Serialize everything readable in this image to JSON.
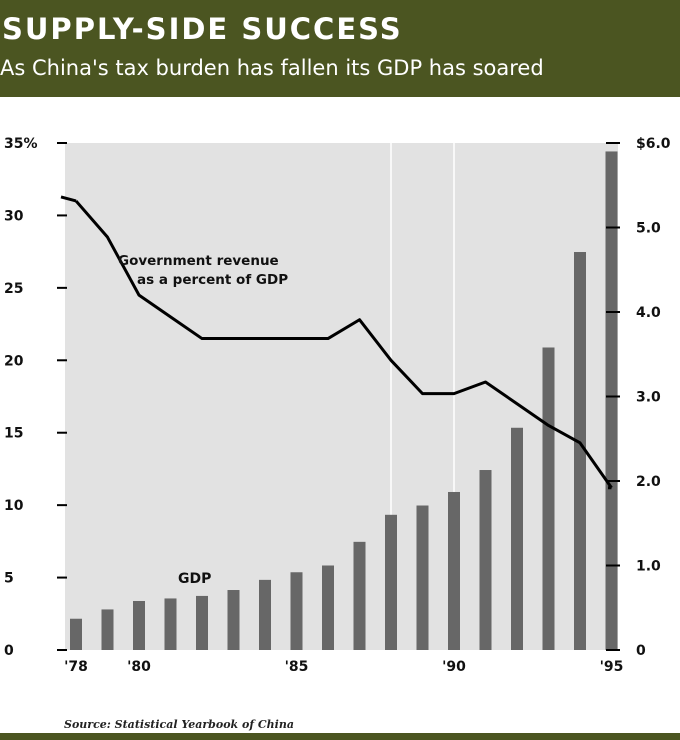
{
  "header": {
    "title": "SUPPLY-SIDE SUCCESS",
    "subtitle": "As China's tax burden has fallen its GDP has soared"
  },
  "source": "Source: Statistical Yearbook of China",
  "colors": {
    "header_bg": "#4b5521",
    "plot_bg": "#e2e2e2",
    "bar": "#676767",
    "line": "#000000"
  },
  "chart_data": {
    "type": "bar",
    "x": [
      1978,
      1979,
      1980,
      1981,
      1982,
      1983,
      1984,
      1985,
      1986,
      1987,
      1988,
      1989,
      1990,
      1991,
      1992,
      1993,
      1994,
      1995
    ],
    "x_tick_values": [
      1978,
      1980,
      1985,
      1990,
      1995
    ],
    "x_tick_labels": [
      "'78",
      "'80",
      "'85",
      "'90",
      "'95"
    ],
    "series": [
      {
        "name": "GDP",
        "type": "bar",
        "axis": "right",
        "values": [
          0.37,
          0.48,
          0.58,
          0.61,
          0.64,
          0.71,
          0.83,
          0.92,
          1.0,
          1.28,
          1.6,
          1.71,
          1.87,
          2.13,
          2.63,
          3.58,
          4.71,
          5.9
        ]
      },
      {
        "name": "Government revenue as a percent of GDP",
        "type": "line",
        "axis": "left",
        "values": [
          31,
          28.5,
          24.5,
          23,
          21.5,
          21.5,
          21.5,
          21.5,
          21.5,
          22.8,
          20,
          17.7,
          17.7,
          18.5,
          17,
          15.5,
          14.3,
          11.2
        ]
      }
    ],
    "line_label": [
      "Government revenue",
      "as a percent of GDP"
    ],
    "bar_label": "GDP",
    "left_axis": {
      "ylim": [
        0,
        35
      ],
      "ticks": [
        0,
        5,
        10,
        15,
        20,
        25,
        30,
        35
      ],
      "tick_labels": [
        "0",
        "5",
        "10",
        "15",
        "20",
        "25",
        "30",
        "35%"
      ]
    },
    "right_axis": {
      "ylim": [
        0,
        6
      ],
      "ticks": [
        0,
        1,
        2,
        3,
        4,
        5,
        6
      ],
      "tick_labels": [
        "0",
        "1.0",
        "2.0",
        "3.0",
        "4.0",
        "5.0",
        "$6.0"
      ]
    },
    "reference_lines_x": [
      1988,
      1990
    ],
    "grid": false
  }
}
